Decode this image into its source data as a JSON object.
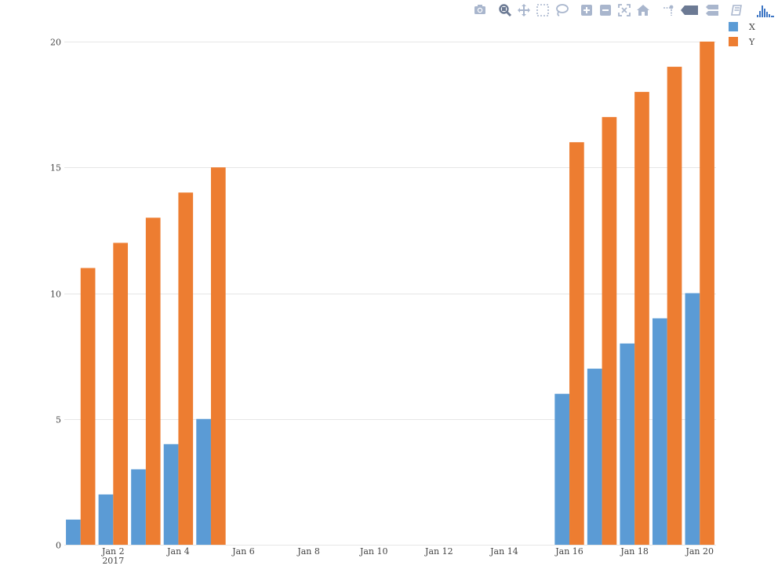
{
  "modebar": {
    "buttons": [
      "camera-icon",
      "zoom-icon",
      "pan-icon",
      "box-select-icon",
      "lasso-select-icon",
      "zoom-in-icon",
      "zoom-out-icon",
      "autoscale-icon",
      "home-icon",
      "spike-lines-icon",
      "hover-closest-icon",
      "hover-compare-icon",
      "edit-chart-icon",
      "plotly-logo-icon"
    ],
    "color": "#a9b6cd",
    "active_color": "#6c7a94",
    "logo_color": "#3f77c5"
  },
  "chart_data": {
    "type": "bar",
    "title": "",
    "xlabel": "",
    "ylabel": "",
    "x": [
      "2017-01-01",
      "2017-01-02",
      "2017-01-03",
      "2017-01-04",
      "2017-01-05",
      "2017-01-16",
      "2017-01-17",
      "2017-01-18",
      "2017-01-19",
      "2017-01-20"
    ],
    "series": [
      {
        "name": "X",
        "color": "#5b9bd5",
        "values": [
          1,
          2,
          3,
          4,
          5,
          6,
          7,
          8,
          9,
          10
        ]
      },
      {
        "name": "Y",
        "color": "#ed7d31",
        "values": [
          11,
          12,
          13,
          14,
          15,
          16,
          17,
          18,
          19,
          20
        ]
      }
    ],
    "xlim": [
      "2016-12-31T12:00",
      "2017-01-20T12:00"
    ],
    "ylim": [
      0,
      20
    ],
    "x_ticks": [
      {
        "date": "2017-01-02",
        "label": "Jan 2",
        "sublabel": "2017"
      },
      {
        "date": "2017-01-04",
        "label": "Jan 4"
      },
      {
        "date": "2017-01-06",
        "label": "Jan 6"
      },
      {
        "date": "2017-01-08",
        "label": "Jan 8"
      },
      {
        "date": "2017-01-10",
        "label": "Jan 10"
      },
      {
        "date": "2017-01-12",
        "label": "Jan 12"
      },
      {
        "date": "2017-01-14",
        "label": "Jan 14"
      },
      {
        "date": "2017-01-16",
        "label": "Jan 16"
      },
      {
        "date": "2017-01-18",
        "label": "Jan 18"
      },
      {
        "date": "2017-01-20",
        "label": "Jan 20"
      }
    ],
    "y_ticks": [
      0,
      5,
      10,
      15,
      20
    ],
    "grid": true,
    "legend_position": "top-right",
    "barmode": "group"
  }
}
